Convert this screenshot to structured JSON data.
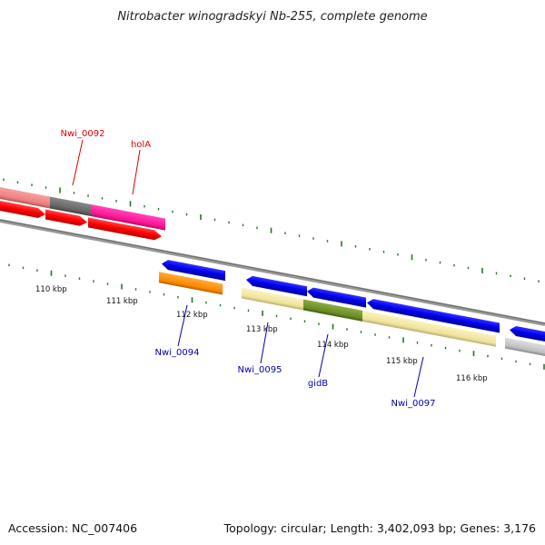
{
  "title": "Nitrobacter winogradskyi Nb-255, complete genome",
  "footer": {
    "accession": "Accession: NC_007406",
    "summary": "Topology: circular; Length: 3,402,093 bp; Genes: 3,176"
  },
  "colors": {
    "red_label": "#dd0000",
    "blue_label": "#0000aa",
    "tick": "#227722",
    "backbone": "#888888"
  },
  "kbp_labels": [
    "110 kbp",
    "111 kbp",
    "112 kbp",
    "113 kbp",
    "114 kbp",
    "115 kbp",
    "116 kbp"
  ],
  "gene_labels": {
    "nwi_0092": "Nwi_0092",
    "hola": "holA",
    "nwi_0094": "Nwi_0094",
    "nwi_0095": "Nwi_0095",
    "gidb": "gidB",
    "nwi_0097": "Nwi_0097"
  }
}
